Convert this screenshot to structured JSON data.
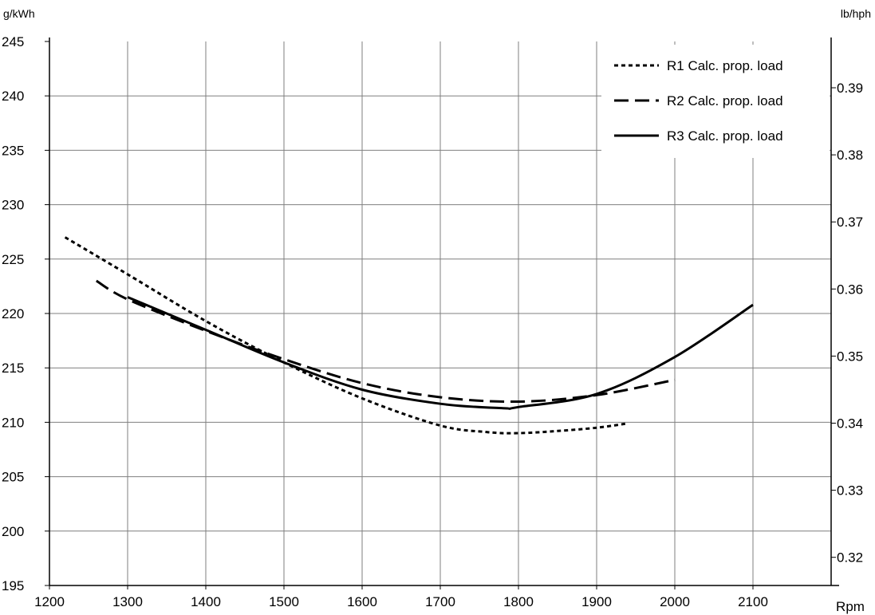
{
  "chart_data": {
    "type": "line",
    "title": "",
    "xlabel": "Rpm",
    "ylabel": "g/kWh",
    "y2label": "lb/hph",
    "xlim": [
      1200,
      2200
    ],
    "ylim": [
      195,
      245
    ],
    "y2lim": [
      0.3158,
      0.3969
    ],
    "x_ticks": [
      1200,
      1300,
      1400,
      1500,
      1600,
      1700,
      1800,
      1900,
      2000,
      2100
    ],
    "x_tick_labels": [
      "1200",
      "1300",
      "1400",
      "1500",
      "1600",
      "1700",
      "1800",
      "1900",
      "2000",
      "2100"
    ],
    "y_ticks": [
      195,
      200,
      205,
      210,
      215,
      220,
      225,
      230,
      235,
      240,
      245
    ],
    "y_tick_labels": [
      "195",
      "200",
      "205",
      "210",
      "215",
      "220",
      "225",
      "230",
      "235",
      "240",
      "245"
    ],
    "y2_ticks": [
      0.32,
      0.33,
      0.34,
      0.35,
      0.36,
      0.37,
      0.38,
      0.39
    ],
    "y2_tick_labels": [
      "0.32",
      "0.33",
      "0.34",
      "0.35",
      "0.36",
      "0.37",
      "0.38",
      "0.39"
    ],
    "grid": true,
    "legend_position": "top-right",
    "series": [
      {
        "name": "R1 Calc. prop. load",
        "style": "dotted",
        "x": [
          1220,
          1300,
          1400,
          1500,
          1600,
          1700,
          1760,
          1800,
          1850,
          1900,
          1940
        ],
        "y": [
          227,
          223.6,
          219.3,
          215.5,
          212.2,
          209.7,
          209.1,
          209.0,
          209.2,
          209.5,
          209.9
        ]
      },
      {
        "name": "R2 Calc. prop. load",
        "style": "dashed",
        "x": [
          1260,
          1300,
          1400,
          1500,
          1600,
          1700,
          1800,
          1900,
          2000
        ],
        "y": [
          223.0,
          221.3,
          218.4,
          215.8,
          213.6,
          212.3,
          211.9,
          212.5,
          213.9
        ]
      },
      {
        "name": "R3 Calc. prop. load",
        "style": "solid",
        "x": [
          1300,
          1400,
          1500,
          1600,
          1700,
          1780,
          1800,
          1900,
          2000,
          2100
        ],
        "y": [
          221.5,
          218.5,
          215.5,
          213.0,
          211.7,
          211.3,
          211.4,
          212.6,
          216.0,
          220.8
        ]
      }
    ],
    "colors": {
      "line": "#000000",
      "grid": "#7f7f7f",
      "axis": "#000000",
      "background": "#ffffff"
    }
  }
}
